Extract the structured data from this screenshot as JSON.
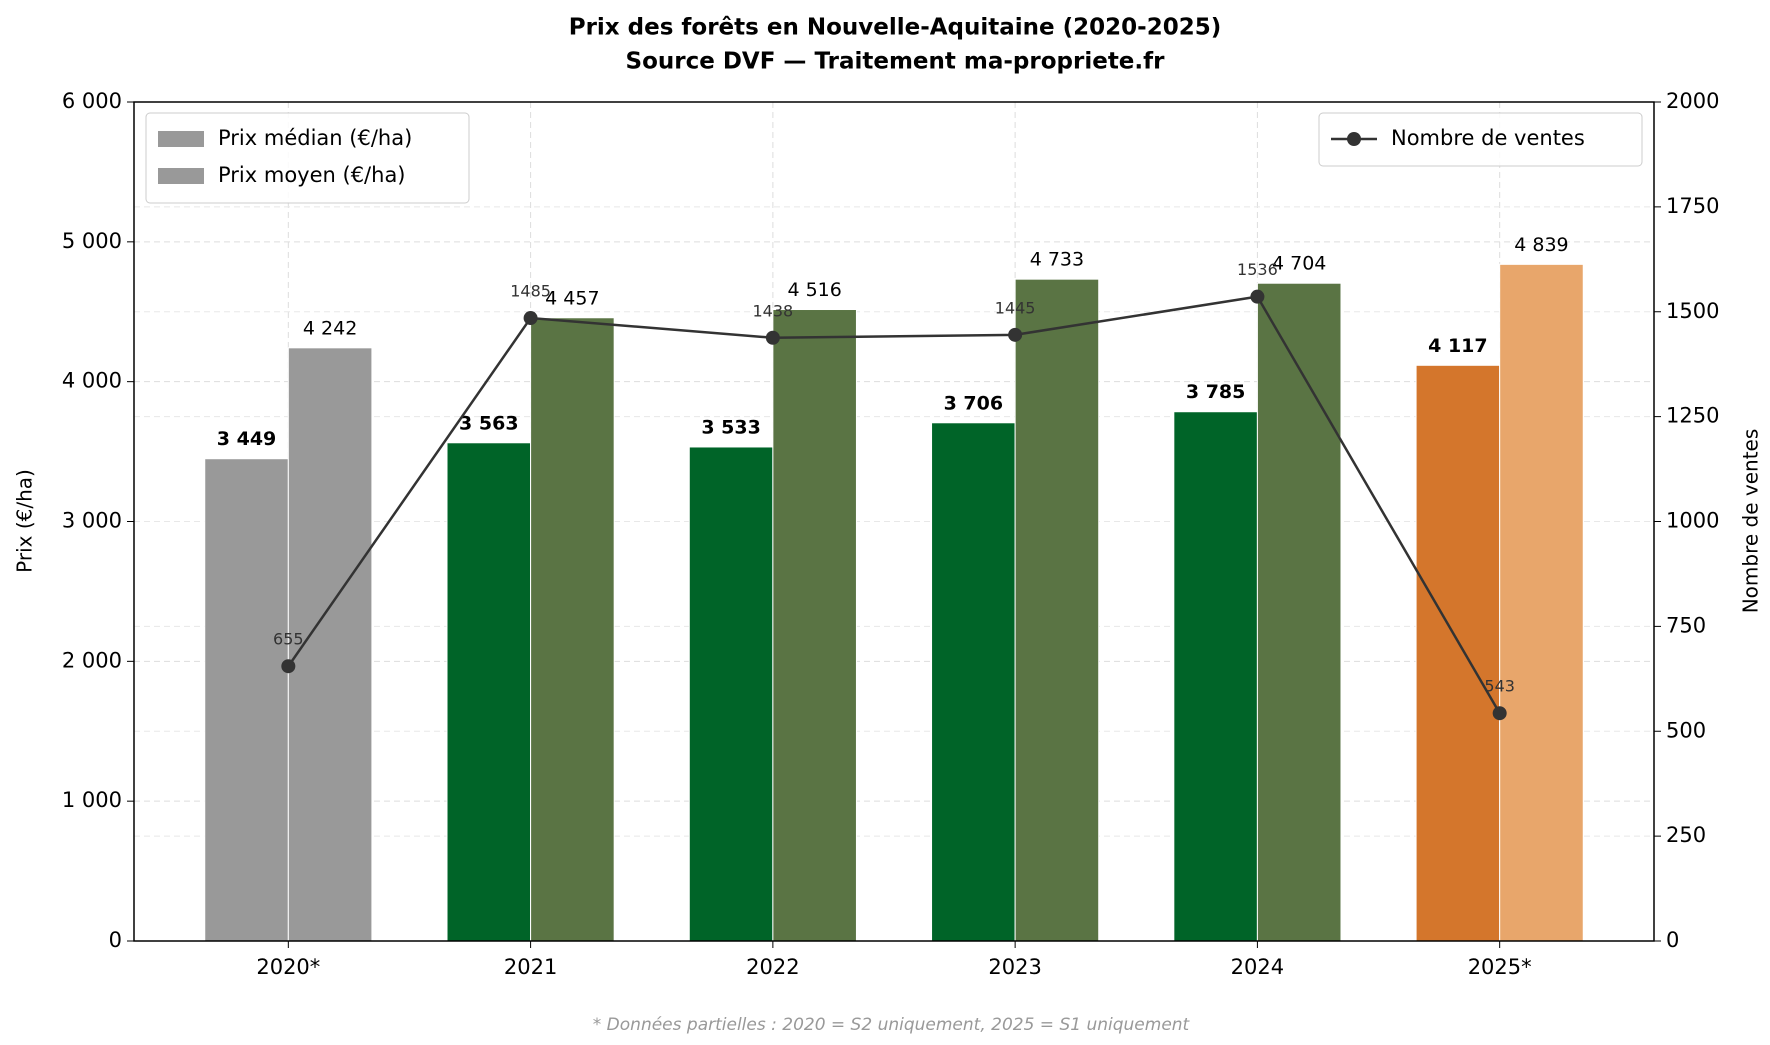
{
  "chart_data": {
    "type": "bar",
    "title": "Prix des forêts en Nouvelle-Aquitaine (2020-2025)",
    "subtitle": "Source DVF — Traitement ma-propriete.fr",
    "y_label": "Prix (€/ha)",
    "y2_label": "Nombre de ventes",
    "footnote": "* Données partielles : 2020 = S2 uniquement, 2025 = S1 uniquement",
    "categories": [
      "2020*",
      "2021",
      "2022",
      "2023",
      "2024",
      "2025*"
    ],
    "series": [
      {
        "name": "Prix médian (€/ha)",
        "type": "bar",
        "legend_color": "#999999",
        "legend_loc": "upper left",
        "colors": [
          "#999999",
          "#006428",
          "#006428",
          "#006428",
          "#006428",
          "#d4762c"
        ],
        "values": [
          3449,
          3563,
          3533,
          3706,
          3785,
          4117
        ],
        "value_labels": [
          "3 449",
          "3 563",
          "3 533",
          "3 706",
          "3 785",
          "4 117"
        ]
      },
      {
        "name": "Prix moyen (€/ha)",
        "type": "bar",
        "legend_color": "#999999",
        "legend_loc": "upper left",
        "colors": [
          "#999999",
          "#5a7444",
          "#5a7444",
          "#5a7444",
          "#5a7444",
          "#e8a66b"
        ],
        "values": [
          4242,
          4457,
          4516,
          4733,
          4704,
          4839
        ],
        "value_labels": [
          "4 242",
          "4 457",
          "4 516",
          "4 733",
          "4 704",
          "4 839"
        ]
      },
      {
        "name": "Nombre de ventes",
        "type": "line",
        "axis": "y2",
        "color": "#333333",
        "legend_loc": "upper right",
        "values": [
          655,
          1485,
          1438,
          1445,
          1536,
          543
        ]
      }
    ],
    "ylim": [
      0,
      6000
    ],
    "yticks": [
      0,
      {
        "value": 1000,
        "label": "1 000"
      },
      {
        "value": 2000,
        "label": "2 000"
      },
      {
        "value": 3000,
        "label": "3 000"
      },
      {
        "value": 4000,
        "label": "4 000"
      },
      {
        "value": 5000,
        "label": "5 000"
      },
      {
        "value": 6000,
        "label": "6 000"
      }
    ],
    "y2lim": [
      0,
      2000
    ],
    "y2ticks": [
      0,
      250,
      500,
      750,
      1000,
      1250,
      1500,
      1750,
      2000
    ],
    "grid": true
  }
}
